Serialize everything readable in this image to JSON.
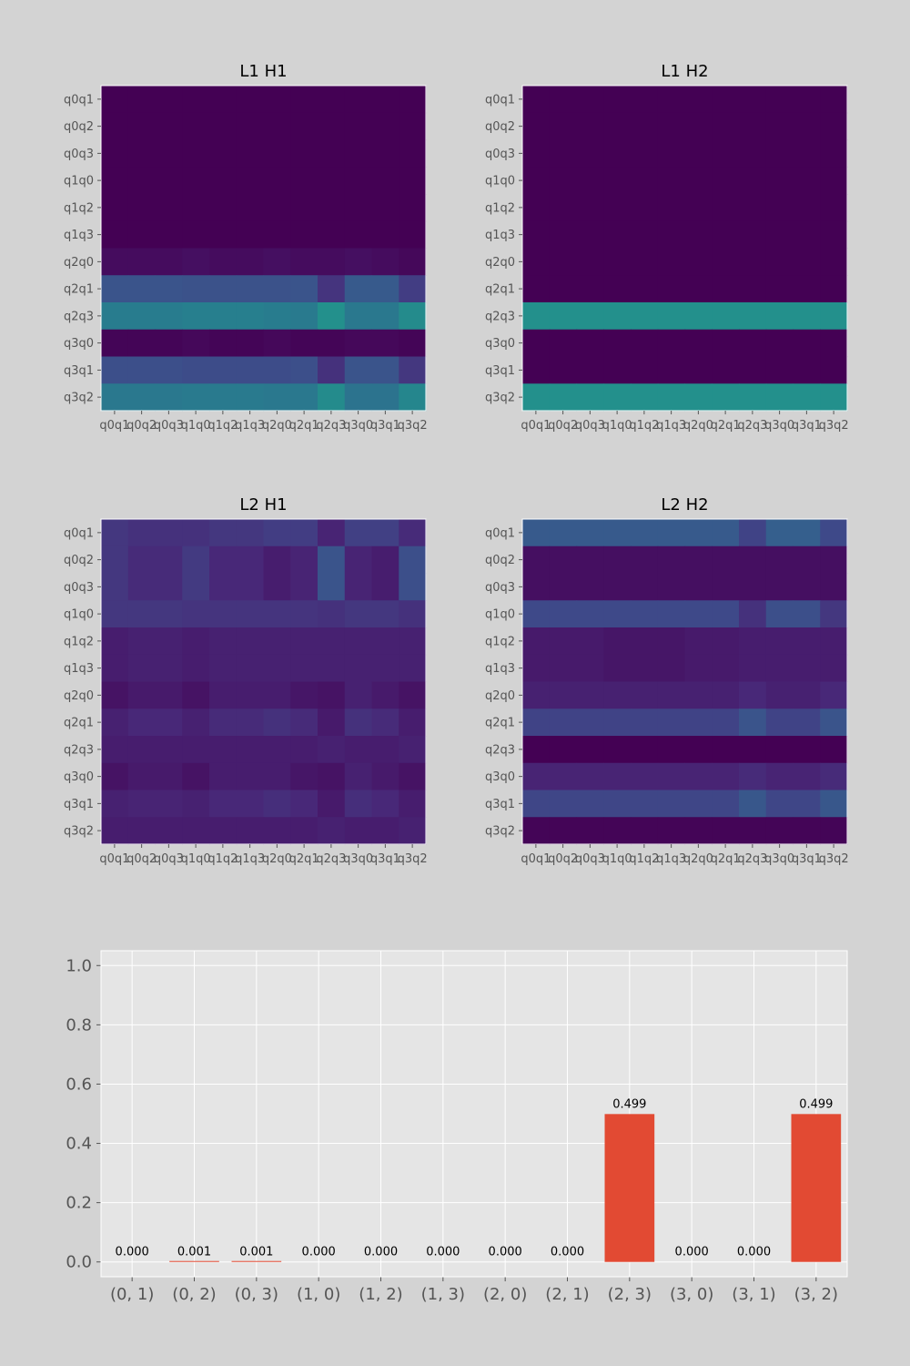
{
  "colors": {
    "figure_bg": "#d3d3d3",
    "axes_bg": "#e5e5e5",
    "grid": "#ffffff",
    "bar": "#e24a33",
    "colormap": "viridis"
  },
  "chart_data": [
    {
      "type": "heatmap",
      "title": "L1 H1",
      "x_labels": [
        "q0q1",
        "q0q2",
        "q0q3",
        "q1q0",
        "q1q2",
        "q1q3",
        "q2q0",
        "q2q1",
        "q2q3",
        "q3q0",
        "q3q1",
        "q3q2"
      ],
      "y_labels": [
        "q0q1",
        "q0q2",
        "q0q3",
        "q1q0",
        "q1q2",
        "q1q3",
        "q2q0",
        "q2q1",
        "q2q3",
        "q3q0",
        "q3q1",
        "q3q2"
      ],
      "value_range": [
        0,
        1
      ],
      "values": [
        [
          0,
          0,
          0,
          0,
          0,
          0,
          0,
          0,
          0,
          0,
          0,
          0
        ],
        [
          0,
          0,
          0,
          0,
          0,
          0,
          0,
          0,
          0,
          0,
          0,
          0
        ],
        [
          0,
          0,
          0,
          0,
          0,
          0,
          0,
          0,
          0,
          0,
          0,
          0
        ],
        [
          0,
          0,
          0,
          0,
          0,
          0,
          0,
          0,
          0,
          0,
          0,
          0
        ],
        [
          0,
          0,
          0,
          0,
          0,
          0,
          0,
          0,
          0,
          0,
          0,
          0
        ],
        [
          0,
          0,
          0,
          0,
          0,
          0,
          0,
          0,
          0,
          0,
          0,
          0
        ],
        [
          0.03,
          0.03,
          0.03,
          0.04,
          0.03,
          0.03,
          0.04,
          0.03,
          0.03,
          0.04,
          0.03,
          0.02
        ],
        [
          0.26,
          0.26,
          0.26,
          0.25,
          0.25,
          0.25,
          0.25,
          0.26,
          0.15,
          0.28,
          0.28,
          0.18
        ],
        [
          0.42,
          0.42,
          0.42,
          0.43,
          0.43,
          0.43,
          0.42,
          0.41,
          0.5,
          0.4,
          0.4,
          0.48
        ],
        [
          0.01,
          0.01,
          0.01,
          0.02,
          0.01,
          0.01,
          0.02,
          0.01,
          0.01,
          0.02,
          0.02,
          0.01
        ],
        [
          0.24,
          0.24,
          0.24,
          0.23,
          0.23,
          0.23,
          0.23,
          0.24,
          0.14,
          0.26,
          0.26,
          0.16
        ],
        [
          0.4,
          0.4,
          0.4,
          0.41,
          0.41,
          0.41,
          0.4,
          0.4,
          0.48,
          0.38,
          0.38,
          0.46
        ]
      ]
    },
    {
      "type": "heatmap",
      "title": "L1 H2",
      "x_labels": [
        "q0q1",
        "q0q2",
        "q0q3",
        "q1q0",
        "q1q2",
        "q1q3",
        "q2q0",
        "q2q1",
        "q2q3",
        "q3q0",
        "q3q1",
        "q3q2"
      ],
      "y_labels": [
        "q0q1",
        "q0q2",
        "q0q3",
        "q1q0",
        "q1q2",
        "q1q3",
        "q2q0",
        "q2q1",
        "q2q3",
        "q3q0",
        "q3q1",
        "q3q2"
      ],
      "value_range": [
        0,
        1
      ],
      "values": [
        [
          0,
          0,
          0,
          0,
          0,
          0,
          0,
          0,
          0,
          0,
          0,
          0
        ],
        [
          0,
          0,
          0,
          0,
          0,
          0,
          0,
          0,
          0,
          0,
          0,
          0
        ],
        [
          0,
          0,
          0,
          0,
          0,
          0,
          0,
          0,
          0,
          0,
          0,
          0
        ],
        [
          0,
          0,
          0,
          0,
          0,
          0,
          0,
          0,
          0,
          0,
          0,
          0
        ],
        [
          0,
          0,
          0,
          0,
          0,
          0,
          0,
          0,
          0,
          0,
          0,
          0
        ],
        [
          0,
          0,
          0,
          0,
          0,
          0,
          0,
          0,
          0,
          0,
          0,
          0
        ],
        [
          0,
          0,
          0,
          0,
          0,
          0,
          0,
          0,
          0,
          0,
          0,
          0
        ],
        [
          0,
          0,
          0,
          0,
          0,
          0,
          0,
          0,
          0,
          0,
          0,
          0
        ],
        [
          0.5,
          0.5,
          0.5,
          0.5,
          0.5,
          0.5,
          0.5,
          0.5,
          0.5,
          0.5,
          0.5,
          0.5
        ],
        [
          0,
          0,
          0,
          0,
          0,
          0,
          0,
          0,
          0,
          0,
          0,
          0
        ],
        [
          0,
          0,
          0,
          0,
          0,
          0,
          0,
          0,
          0,
          0,
          0,
          0
        ],
        [
          0.5,
          0.5,
          0.5,
          0.5,
          0.5,
          0.5,
          0.5,
          0.5,
          0.5,
          0.5,
          0.5,
          0.5
        ]
      ]
    },
    {
      "type": "heatmap",
      "title": "L2 H1",
      "x_labels": [
        "q0q1",
        "q0q2",
        "q0q3",
        "q1q0",
        "q1q2",
        "q1q3",
        "q2q0",
        "q2q1",
        "q2q3",
        "q3q0",
        "q3q1",
        "q3q2"
      ],
      "y_labels": [
        "q0q1",
        "q0q2",
        "q0q3",
        "q1q0",
        "q1q2",
        "q1q3",
        "q2q0",
        "q2q1",
        "q2q3",
        "q3q0",
        "q3q1",
        "q3q2"
      ],
      "value_range": [
        0,
        1
      ],
      "values": [
        [
          0.16,
          0.14,
          0.14,
          0.14,
          0.16,
          0.16,
          0.18,
          0.18,
          0.1,
          0.19,
          0.19,
          0.12
        ],
        [
          0.16,
          0.12,
          0.12,
          0.17,
          0.11,
          0.11,
          0.08,
          0.1,
          0.26,
          0.1,
          0.08,
          0.24
        ],
        [
          0.16,
          0.12,
          0.12,
          0.17,
          0.11,
          0.11,
          0.08,
          0.1,
          0.26,
          0.1,
          0.08,
          0.24
        ],
        [
          0.16,
          0.16,
          0.16,
          0.15,
          0.15,
          0.15,
          0.15,
          0.15,
          0.14,
          0.16,
          0.16,
          0.14
        ],
        [
          0.08,
          0.09,
          0.09,
          0.08,
          0.09,
          0.09,
          0.09,
          0.09,
          0.09,
          0.09,
          0.09,
          0.09
        ],
        [
          0.08,
          0.09,
          0.09,
          0.08,
          0.09,
          0.09,
          0.09,
          0.09,
          0.09,
          0.09,
          0.09,
          0.09
        ],
        [
          0.05,
          0.07,
          0.07,
          0.05,
          0.08,
          0.08,
          0.08,
          0.06,
          0.05,
          0.09,
          0.07,
          0.05
        ],
        [
          0.09,
          0.11,
          0.11,
          0.09,
          0.12,
          0.12,
          0.14,
          0.12,
          0.07,
          0.14,
          0.12,
          0.08
        ],
        [
          0.08,
          0.08,
          0.08,
          0.08,
          0.08,
          0.08,
          0.08,
          0.08,
          0.09,
          0.08,
          0.08,
          0.09
        ],
        [
          0.05,
          0.07,
          0.07,
          0.05,
          0.08,
          0.08,
          0.08,
          0.06,
          0.05,
          0.09,
          0.07,
          0.05
        ],
        [
          0.09,
          0.1,
          0.1,
          0.09,
          0.11,
          0.11,
          0.13,
          0.11,
          0.07,
          0.13,
          0.11,
          0.08
        ],
        [
          0.08,
          0.08,
          0.08,
          0.08,
          0.08,
          0.08,
          0.08,
          0.08,
          0.09,
          0.08,
          0.08,
          0.09
        ]
      ]
    },
    {
      "type": "heatmap",
      "title": "L2 H2",
      "x_labels": [
        "q0q1",
        "q0q2",
        "q0q3",
        "q1q0",
        "q1q2",
        "q1q3",
        "q2q0",
        "q2q1",
        "q2q3",
        "q3q0",
        "q3q1",
        "q3q2"
      ],
      "y_labels": [
        "q0q1",
        "q0q2",
        "q0q3",
        "q1q0",
        "q1q2",
        "q1q3",
        "q2q0",
        "q2q1",
        "q2q3",
        "q3q0",
        "q3q1",
        "q3q2"
      ],
      "value_range": [
        0,
        1
      ],
      "values": [
        [
          0.28,
          0.28,
          0.28,
          0.28,
          0.28,
          0.28,
          0.28,
          0.28,
          0.2,
          0.3,
          0.3,
          0.22
        ],
        [
          0.04,
          0.04,
          0.04,
          0.04,
          0.04,
          0.04,
          0.04,
          0.04,
          0.04,
          0.04,
          0.04,
          0.04
        ],
        [
          0.04,
          0.04,
          0.04,
          0.04,
          0.04,
          0.04,
          0.04,
          0.04,
          0.04,
          0.04,
          0.04,
          0.04
        ],
        [
          0.22,
          0.22,
          0.22,
          0.22,
          0.22,
          0.22,
          0.22,
          0.22,
          0.14,
          0.24,
          0.24,
          0.16
        ],
        [
          0.07,
          0.07,
          0.07,
          0.06,
          0.06,
          0.06,
          0.07,
          0.07,
          0.08,
          0.08,
          0.08,
          0.08
        ],
        [
          0.07,
          0.07,
          0.07,
          0.06,
          0.06,
          0.06,
          0.07,
          0.07,
          0.08,
          0.08,
          0.08,
          0.08
        ],
        [
          0.09,
          0.09,
          0.09,
          0.09,
          0.09,
          0.09,
          0.09,
          0.09,
          0.11,
          0.09,
          0.09,
          0.11
        ],
        [
          0.2,
          0.2,
          0.2,
          0.2,
          0.2,
          0.2,
          0.2,
          0.2,
          0.26,
          0.2,
          0.2,
          0.26
        ],
        [
          0.0,
          0.0,
          0.0,
          0.0,
          0.0,
          0.0,
          0.0,
          0.0,
          0.0,
          0.0,
          0.0,
          0.0
        ],
        [
          0.1,
          0.1,
          0.1,
          0.1,
          0.1,
          0.1,
          0.1,
          0.1,
          0.12,
          0.1,
          0.1,
          0.12
        ],
        [
          0.21,
          0.21,
          0.21,
          0.21,
          0.21,
          0.21,
          0.21,
          0.21,
          0.27,
          0.21,
          0.21,
          0.27
        ],
        [
          0.01,
          0.01,
          0.01,
          0.01,
          0.01,
          0.01,
          0.01,
          0.01,
          0.01,
          0.01,
          0.01,
          0.01
        ]
      ]
    },
    {
      "type": "bar",
      "title": "",
      "xlabel": "",
      "ylabel": "",
      "categories": [
        "(0, 1)",
        "(0, 2)",
        "(0, 3)",
        "(1, 0)",
        "(1, 2)",
        "(1, 3)",
        "(2, 0)",
        "(2, 1)",
        "(2, 3)",
        "(3, 0)",
        "(3, 1)",
        "(3, 2)"
      ],
      "values": [
        0.0,
        0.001,
        0.001,
        0.0,
        0.0,
        0.0,
        0.0,
        0.0,
        0.499,
        0.0,
        0.0,
        0.499
      ],
      "data_labels": [
        "0.000",
        "0.001",
        "0.001",
        "0.000",
        "0.000",
        "0.000",
        "0.000",
        "0.000",
        "0.499",
        "0.000",
        "0.000",
        "0.499"
      ],
      "ylim": [
        -0.05,
        1.05
      ],
      "yticks": [
        "0.0",
        "0.2",
        "0.4",
        "0.6",
        "0.8",
        "1.0"
      ],
      "ytick_values": [
        0.0,
        0.2,
        0.4,
        0.6,
        0.8,
        1.0
      ],
      "grid": true
    }
  ]
}
